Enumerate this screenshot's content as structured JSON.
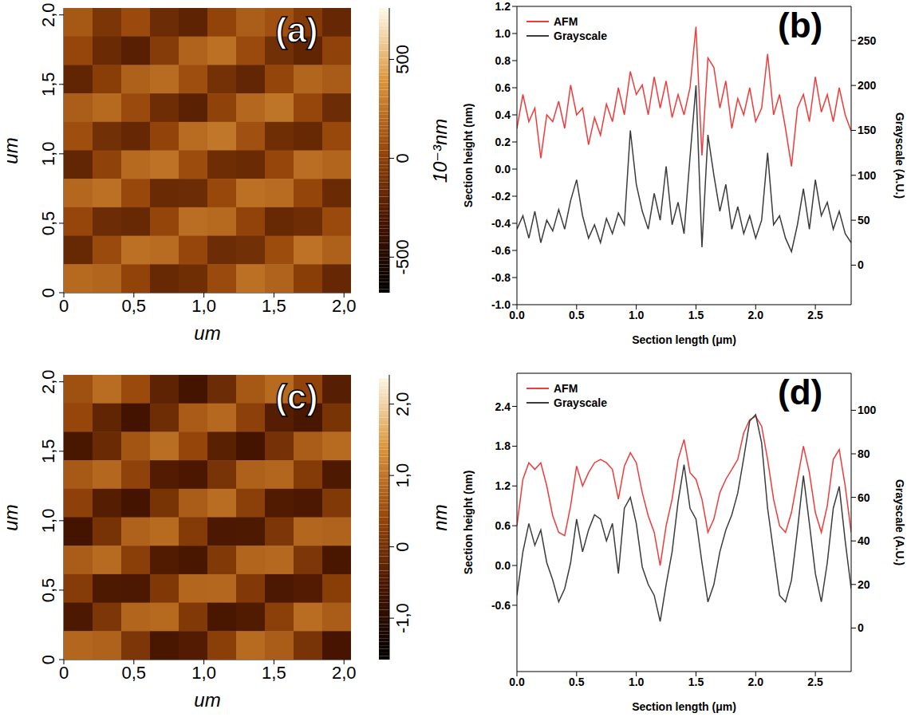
{
  "chart_data": [
    {
      "type": "heatmap",
      "title": "(a)",
      "xlabel": "um",
      "ylabel": "um",
      "xlim": [
        0,
        2.05
      ],
      "ylim": [
        0,
        2.05
      ],
      "xticks": [
        0,
        {
          "value": 0.5,
          "label": "0,5"
        },
        {
          "value": 1,
          "label": "1,0"
        },
        {
          "value": 1.5,
          "label": "1,5"
        },
        {
          "value": 2,
          "label": "2,0"
        }
      ],
      "yticks": [
        0,
        {
          "value": 0.5,
          "label": "0,5"
        },
        {
          "value": 1,
          "label": "1,0"
        },
        {
          "value": 1.5,
          "label": "1,5"
        },
        {
          "value": 2,
          "label": "2,0"
        }
      ],
      "cells": [
        [
          120,
          -80,
          60,
          -150,
          -210,
          20,
          150,
          90,
          -40,
          -180
        ],
        [
          40,
          -160,
          -240,
          -30,
          170,
          230,
          60,
          -120,
          -200,
          10
        ],
        [
          -200,
          -20,
          160,
          210,
          80,
          -110,
          -190,
          30,
          180,
          140
        ],
        [
          150,
          200,
          60,
          -140,
          -230,
          10,
          190,
          250,
          40,
          -150
        ],
        [
          80,
          -120,
          -180,
          20,
          210,
          260,
          90,
          -130,
          -170,
          50
        ],
        [
          -190,
          10,
          200,
          240,
          70,
          -140,
          -160,
          40,
          220,
          180
        ],
        [
          190,
          230,
          50,
          -160,
          -150,
          50,
          230,
          210,
          30,
          -160
        ],
        [
          40,
          -150,
          -170,
          30,
          220,
          200,
          20,
          -170,
          -140,
          60
        ],
        [
          -170,
          60,
          230,
          210,
          40,
          -150,
          -120,
          70,
          240,
          160
        ],
        [
          200,
          180,
          20,
          -170,
          -130,
          60,
          230,
          170,
          -20,
          -180
        ]
      ],
      "colorbar": {
        "label": "10⁻³nm",
        "lim": [
          -680,
          760
        ],
        "ticks": [
          -500,
          0,
          500
        ]
      }
    },
    {
      "type": "line",
      "title": "(b)",
      "xlabel": "Section length (μm)",
      "ylabel": "Section height (nm)",
      "y2label": "Grayscale (A.U.)",
      "x": [
        0,
        0.05,
        0.1,
        0.15,
        0.2,
        0.25,
        0.3,
        0.35,
        0.4,
        0.45,
        0.5,
        0.55,
        0.6,
        0.65,
        0.7,
        0.75,
        0.8,
        0.85,
        0.9,
        0.95,
        1,
        1.05,
        1.1,
        1.15,
        1.2,
        1.25,
        1.3,
        1.35,
        1.4,
        1.45,
        1.5,
        1.55,
        1.6,
        1.65,
        1.7,
        1.75,
        1.8,
        1.85,
        1.9,
        1.95,
        2,
        2.05,
        2.1,
        2.15,
        2.2,
        2.25,
        2.3,
        2.35,
        2.4,
        2.45,
        2.5,
        2.55,
        2.6,
        2.65,
        2.7,
        2.75,
        2.8
      ],
      "series": [
        {
          "name": "AFM",
          "color": "#ef3b3b",
          "values": [
            0.3,
            0.55,
            0.35,
            0.45,
            0.08,
            0.4,
            0.35,
            0.5,
            0.3,
            0.62,
            0.4,
            0.45,
            0.18,
            0.38,
            0.25,
            0.48,
            0.35,
            0.6,
            0.4,
            0.72,
            0.55,
            0.62,
            0.4,
            0.68,
            0.45,
            0.65,
            0.38,
            0.55,
            0.4,
            0.6,
            1.05,
            0.1,
            0.82,
            0.75,
            0.45,
            0.65,
            0.3,
            0.52,
            0.4,
            0.6,
            0.35,
            0.45,
            0.85,
            0.4,
            0.55,
            0.3,
            0.02,
            0.45,
            0.55,
            0.35,
            0.68,
            0.42,
            0.55,
            0.35,
            0.6,
            0.4,
            0.28
          ]
        },
        {
          "name": "Grayscale",
          "color": "#3c3c3c",
          "axis": "y2",
          "values": [
            40,
            55,
            30,
            60,
            25,
            50,
            38,
            62,
            40,
            72,
            95,
            55,
            30,
            45,
            25,
            52,
            35,
            58,
            45,
            150,
            90,
            60,
            40,
            80,
            50,
            110,
            45,
            70,
            35,
            120,
            200,
            20,
            145,
            100,
            60,
            90,
            40,
            65,
            35,
            55,
            30,
            50,
            125,
            45,
            55,
            30,
            15,
            45,
            85,
            40,
            95,
            55,
            70,
            40,
            60,
            35,
            25
          ]
        }
      ],
      "xlim": [
        0,
        2.8
      ],
      "xticks": [
        {
          "value": 0,
          "label": "0.0"
        },
        0.5,
        {
          "value": 1,
          "label": "1.0"
        },
        1.5,
        {
          "value": 2,
          "label": "2.0"
        },
        2.5
      ],
      "ylim": [
        -1,
        1.2
      ],
      "yticks": [
        {
          "value": -1,
          "label": "-1.0"
        },
        -0.8,
        -0.6,
        -0.4,
        -0.2,
        {
          "value": 0,
          "label": "0.0"
        },
        0.2,
        0.4,
        0.6,
        0.8,
        {
          "value": 1,
          "label": "1.0"
        },
        1.2
      ],
      "y2lim": [
        -44,
        288
      ],
      "y2ticks": [
        0,
        50,
        100,
        150,
        200,
        250
      ],
      "legend": "upper left"
    },
    {
      "type": "heatmap",
      "title": "(c)",
      "xlabel": "um",
      "ylabel": "um",
      "xlim": [
        0,
        2.05
      ],
      "ylim": [
        0,
        2.05
      ],
      "xticks": [
        0,
        {
          "value": 0.5,
          "label": "0,5"
        },
        {
          "value": 1,
          "label": "1,0"
        },
        {
          "value": 1.5,
          "label": "1,5"
        },
        {
          "value": 2,
          "label": "2,0"
        }
      ],
      "yticks": [
        0,
        {
          "value": 0.5,
          "label": "0,5"
        },
        {
          "value": 1,
          "label": "1,0"
        },
        {
          "value": 1.5,
          "label": "1,5"
        },
        {
          "value": 2,
          "label": "2,0"
        }
      ],
      "cells": [
        [
          0.55,
          0.9,
          0.47,
          -0.29,
          -0.59,
          -0.11,
          0.64,
          0.88,
          0.36,
          -0.38
        ],
        [
          0.42,
          -0.25,
          -0.62,
          -0.08,
          0.68,
          0.85,
          0.3,
          -0.4,
          -0.55,
          0.05
        ],
        [
          -0.55,
          -0.15,
          0.6,
          0.92,
          0.4,
          -0.35,
          -0.6,
          0.02,
          0.7,
          0.88
        ],
        [
          0.66,
          0.84,
          0.33,
          -0.42,
          -0.52,
          0.04,
          0.75,
          0.82,
          0.2,
          -0.48
        ],
        [
          0.3,
          -0.4,
          -0.6,
          0.05,
          0.7,
          0.9,
          0.28,
          -0.44,
          -0.5,
          0.15
        ],
        [
          -0.6,
          0.03,
          0.76,
          0.88,
          0.2,
          -0.5,
          -0.48,
          0.1,
          0.82,
          0.78
        ],
        [
          0.7,
          0.88,
          0.26,
          -0.44,
          -0.55,
          0.15,
          0.8,
          0.85,
          0.1,
          -0.55
        ],
        [
          0.22,
          -0.48,
          -0.5,
          0.14,
          0.82,
          0.84,
          0.16,
          -0.5,
          -0.42,
          0.25
        ],
        [
          -0.5,
          0.1,
          0.8,
          0.86,
          0.15,
          -0.55,
          -0.44,
          0.28,
          0.9,
          0.7
        ],
        [
          0.82,
          0.76,
          0.1,
          -0.55,
          -0.42,
          0.26,
          0.88,
          0.7,
          0.04,
          -0.58
        ]
      ],
      "colorbar": {
        "label": "nm",
        "lim": [
          -1.58,
          2.41
        ],
        "ticks": [
          {
            "value": -1,
            "label": "-1,0"
          },
          0,
          {
            "value": 1,
            "label": "1,0"
          },
          {
            "value": 2,
            "label": "2,0"
          }
        ]
      }
    },
    {
      "type": "line",
      "title": "(d)",
      "xlabel": "Section length (μm)",
      "ylabel": "Section height (nm)",
      "y2label": "Grayscale (A.U.)",
      "x": [
        0,
        0.05,
        0.1,
        0.15,
        0.2,
        0.25,
        0.3,
        0.35,
        0.4,
        0.45,
        0.5,
        0.55,
        0.6,
        0.65,
        0.7,
        0.75,
        0.8,
        0.85,
        0.9,
        0.95,
        1,
        1.05,
        1.1,
        1.15,
        1.2,
        1.25,
        1.3,
        1.35,
        1.4,
        1.45,
        1.5,
        1.55,
        1.6,
        1.65,
        1.7,
        1.75,
        1.8,
        1.85,
        1.9,
        1.95,
        2,
        2.05,
        2.1,
        2.15,
        2.2,
        2.25,
        2.3,
        2.35,
        2.4,
        2.45,
        2.5,
        2.55,
        2.6,
        2.65,
        2.7,
        2.75,
        2.8
      ],
      "series": [
        {
          "name": "AFM",
          "color": "#ef3b3b",
          "values": [
            0.6,
            1.3,
            1.55,
            1.45,
            1.55,
            1.2,
            0.75,
            0.5,
            0.45,
            0.9,
            1.5,
            1.2,
            1.4,
            1.55,
            1.6,
            1.55,
            1.45,
            1.0,
            1.5,
            1.7,
            1.55,
            1.1,
            0.75,
            0.5,
            0.0,
            0.6,
            1.0,
            1.6,
            1.9,
            1.4,
            1.3,
            1.0,
            0.5,
            0.7,
            1.1,
            1.3,
            1.45,
            1.6,
            2.0,
            2.2,
            2.25,
            2.1,
            1.6,
            1.0,
            0.6,
            0.5,
            0.8,
            1.3,
            1.8,
            1.4,
            0.8,
            0.5,
            0.9,
            1.6,
            1.75,
            1.2,
            0.5
          ]
        },
        {
          "name": "Grayscale",
          "color": "#3c3c3c",
          "axis": "y2",
          "values": [
            15,
            35,
            48,
            38,
            45,
            30,
            22,
            12,
            18,
            30,
            50,
            35,
            45,
            52,
            50,
            40,
            48,
            25,
            55,
            60,
            48,
            28,
            20,
            15,
            3,
            20,
            35,
            58,
            75,
            55,
            50,
            30,
            12,
            20,
            35,
            45,
            52,
            62,
            78,
            95,
            98,
            85,
            55,
            35,
            15,
            12,
            22,
            45,
            70,
            48,
            25,
            12,
            30,
            55,
            65,
            40,
            18
          ]
        }
      ],
      "xlim": [
        0,
        2.8
      ],
      "xticks": [
        {
          "value": 0,
          "label": "0.0"
        },
        0.5,
        {
          "value": 1,
          "label": "1.0"
        },
        1.5,
        {
          "value": 2,
          "label": "2.0"
        },
        2.5
      ],
      "ylim": [
        -1.6,
        2.9
      ],
      "yticks": [
        -0.6,
        {
          "value": 0,
          "label": "0.0"
        },
        0.6,
        1.2,
        1.8,
        2.4
      ],
      "y2lim": [
        -20,
        117
      ],
      "y2ticks": [
        0,
        20,
        40,
        60,
        80,
        100
      ],
      "legend": "upper left"
    }
  ]
}
